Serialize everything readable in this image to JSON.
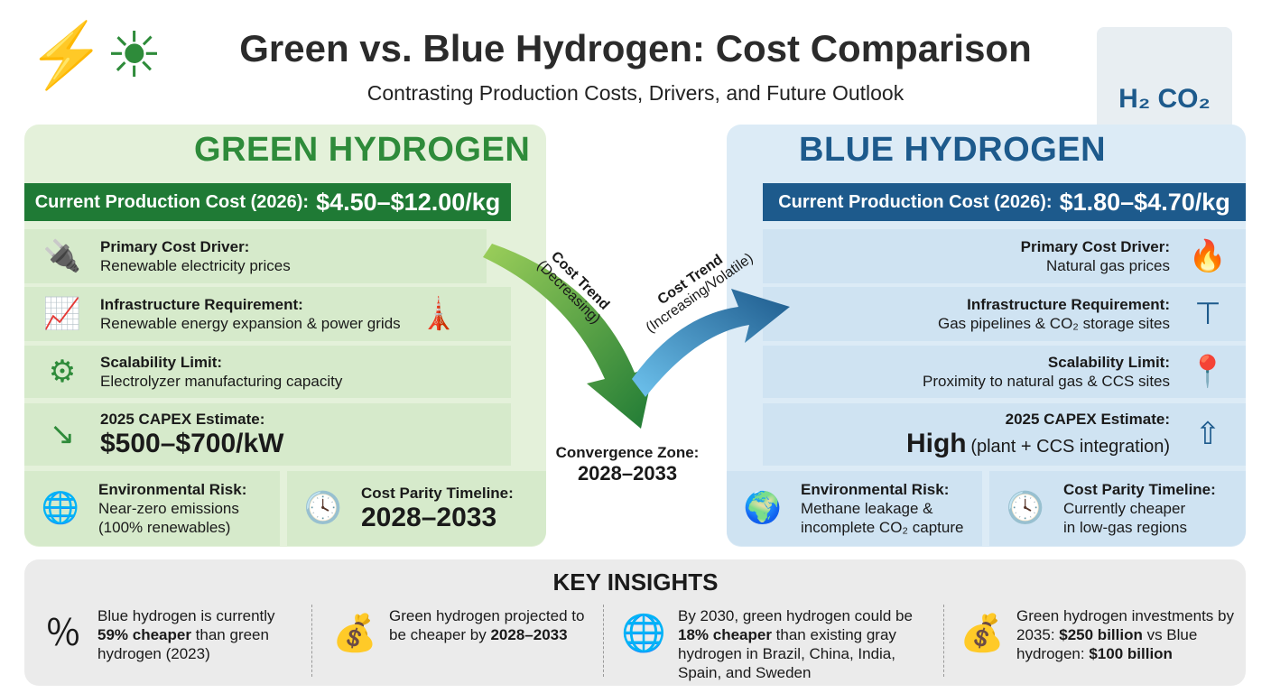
{
  "header": {
    "title": "Green vs. Blue Hydrogen: Cost Comparison",
    "subtitle": "Contrasting Production Costs, Drivers, and Future Outlook"
  },
  "green": {
    "title": "GREEN HYDROGEN",
    "cost_label": "Current Production Cost (2026):",
    "cost_value": "$4.50–$12.00/kg",
    "rows": [
      {
        "label": "Primary Cost Driver:",
        "value": "Renewable electricity prices"
      },
      {
        "label": "Infrastructure Requirement:",
        "value": "Renewable energy expansion & power grids"
      },
      {
        "label": "Scalability Limit:",
        "value": "Electrolyzer manufacturing capacity"
      },
      {
        "label": "2025 CAPEX Estimate:",
        "value": "$500–$700/kW"
      }
    ],
    "env": {
      "label": "Environmental Risk:",
      "line1": "Near-zero emissions",
      "line2": "(100% renewables)"
    },
    "parity": {
      "label": "Cost Parity Timeline:",
      "value": "2028–2033"
    }
  },
  "blue": {
    "title": "BLUE HYDROGEN",
    "cost_label": "Current Production Cost (2026):",
    "cost_value": "$1.80–$4.70/kg",
    "rows": [
      {
        "label": "Primary Cost Driver:",
        "value": "Natural gas prices"
      },
      {
        "label": "Infrastructure Requirement:",
        "value": "Gas pipelines & CO₂ storage sites"
      },
      {
        "label": "Scalability Limit:",
        "value": "Proximity to natural gas & CCS sites"
      },
      {
        "label": "2025 CAPEX Estimate:",
        "value_big": "High",
        "value": "(plant + CCS integration)"
      }
    ],
    "env": {
      "label": "Environmental Risk:",
      "line1": "Methane leakage &",
      "line2": "incomplete CO₂ capture"
    },
    "parity": {
      "label": "Cost Parity Timeline:",
      "line1": "Currently cheaper",
      "line2": "in low-gas regions"
    }
  },
  "middle": {
    "green_trend": "Cost Trend",
    "green_trend_sub": "(Decreasing)",
    "blue_trend": "Cost Trend",
    "blue_trend_sub": "(Increasing/Volatile)",
    "convergence_label": "Convergence Zone:",
    "convergence_value": "2028–2033"
  },
  "insights": {
    "title": "KEY INSIGHTS",
    "items": [
      {
        "a": "Blue hydrogen is currently ",
        "b": "59% cheaper",
        "c": " than green hydrogen (2023)",
        "d": ""
      },
      {
        "a": "Green hydrogen projected to be cheaper by ",
        "b": "2028–2033",
        "c": "",
        "d": ""
      },
      {
        "a": "By 2030, green hydrogen could be ",
        "b": "18% cheaper",
        "c": " than existing gray hydrogen in Brazil, China, India, Spain, and Sweden",
        "d": ""
      },
      {
        "a": "Green hydrogen investments by 2035: ",
        "b": "$250 billion",
        "c": " vs Blue hydrogen: ",
        "d": "$100 billion"
      }
    ]
  },
  "colors": {
    "green": "#1f7a35",
    "blue": "#1d5a8c",
    "green_bg": "#e4f1da",
    "blue_bg": "#dcebf6"
  }
}
